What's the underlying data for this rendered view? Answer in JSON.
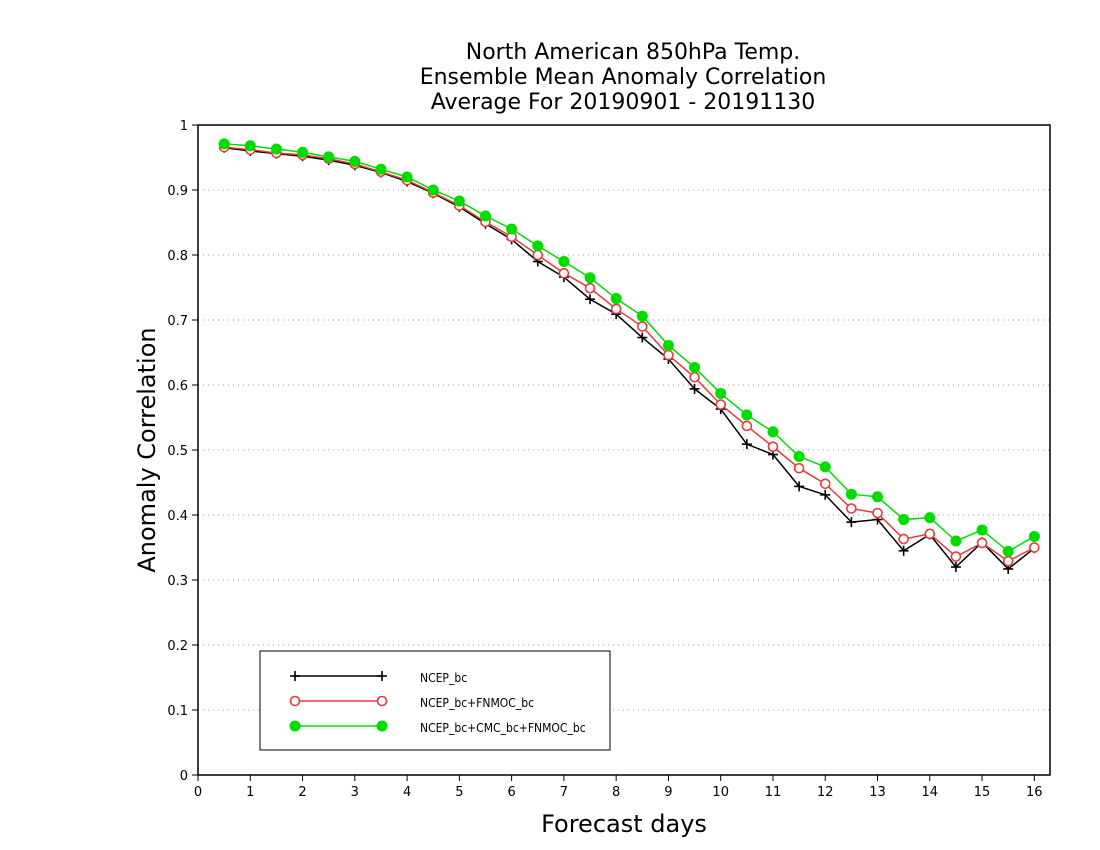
{
  "chart_data": {
    "type": "line",
    "title_lines": [
      "North American 850hPa Temp.",
      "Ensemble Mean Anomaly Correlation",
      "Average For 20190901 - 20191130"
    ],
    "xlabel": "Forecast days",
    "ylabel": "Anomaly Correlation",
    "xlim": [
      0,
      16.3
    ],
    "ylim": [
      0,
      1
    ],
    "xticks": [
      0,
      1,
      2,
      3,
      4,
      5,
      6,
      7,
      8,
      9,
      10,
      11,
      12,
      13,
      14,
      15,
      16
    ],
    "yticks": [
      0,
      0.1,
      0.2,
      0.3,
      0.4,
      0.5,
      0.6,
      0.7,
      0.8,
      0.9,
      1
    ],
    "ytick_labels": [
      "0",
      "0.1",
      "0.2",
      "0.3",
      "0.4",
      "0.5",
      "0.6",
      "0.7",
      "0.8",
      "0.9",
      "1"
    ],
    "grid": "horizontal-dotted",
    "legend_position": "bottom-left",
    "x": [
      0.5,
      1.0,
      1.5,
      2.0,
      2.5,
      3.0,
      3.5,
      4.0,
      4.5,
      5.0,
      5.5,
      6.0,
      6.5,
      7.0,
      7.5,
      8.0,
      8.5,
      9.0,
      9.5,
      10.0,
      10.5,
      11.0,
      11.5,
      12.0,
      12.5,
      13.0,
      13.5,
      14.0,
      14.5,
      15.0,
      15.5,
      16.0
    ],
    "series": [
      {
        "name": "NCEP_bc",
        "color": "#000000",
        "marker": "plus",
        "values": [
          0.965,
          0.96,
          0.956,
          0.952,
          0.946,
          0.938,
          0.927,
          0.913,
          0.895,
          0.874,
          0.848,
          0.824,
          0.79,
          0.766,
          0.732,
          0.709,
          0.673,
          0.64,
          0.594,
          0.563,
          0.509,
          0.493,
          0.444,
          0.431,
          0.389,
          0.393,
          0.345,
          0.37,
          0.32,
          0.358,
          0.317,
          0.349
        ]
      },
      {
        "name": "NCEP_bc+FNMOC_bc",
        "color": "#e83a3a",
        "marker": "open-circle",
        "values": [
          0.966,
          0.962,
          0.957,
          0.954,
          0.948,
          0.94,
          0.928,
          0.915,
          0.896,
          0.876,
          0.851,
          0.828,
          0.8,
          0.772,
          0.749,
          0.717,
          0.69,
          0.646,
          0.612,
          0.57,
          0.537,
          0.505,
          0.472,
          0.448,
          0.41,
          0.403,
          0.363,
          0.371,
          0.336,
          0.357,
          0.329,
          0.35
        ]
      },
      {
        "name": "NCEP_bc+CMC_bc+FNMOC_bc",
        "color": "#00dc00",
        "marker": "filled-circle",
        "values": [
          0.971,
          0.968,
          0.963,
          0.958,
          0.951,
          0.944,
          0.932,
          0.92,
          0.9,
          0.883,
          0.86,
          0.84,
          0.814,
          0.79,
          0.765,
          0.733,
          0.706,
          0.661,
          0.627,
          0.587,
          0.554,
          0.528,
          0.49,
          0.474,
          0.432,
          0.428,
          0.393,
          0.396,
          0.36,
          0.377,
          0.344,
          0.367
        ]
      }
    ]
  }
}
